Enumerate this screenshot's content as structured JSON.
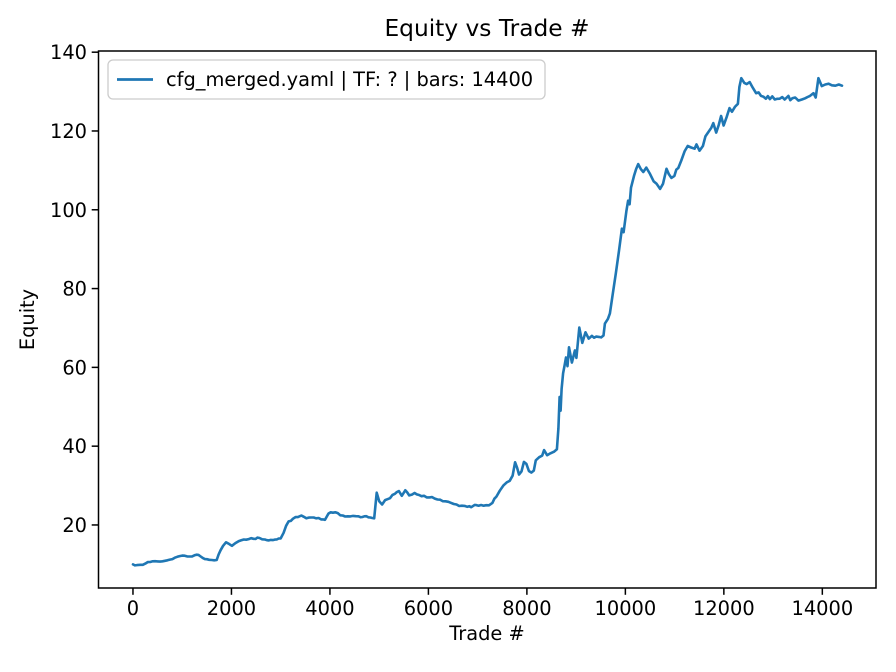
{
  "colors": {
    "line": "#1f77b4",
    "spine": "#000000",
    "legend_border": "#cccccc",
    "background": "#ffffff"
  },
  "chart_data": {
    "type": "line",
    "title": "Equity vs Trade #",
    "xlabel": "Trade #",
    "ylabel": "Equity",
    "grid": false,
    "legend_position": "upper left",
    "xlim": [
      -700,
      15090
    ],
    "ylim": [
      4,
      140.3
    ],
    "x_ticks": [
      0,
      2000,
      4000,
      6000,
      8000,
      10000,
      12000,
      14000
    ],
    "y_ticks": [
      20,
      40,
      60,
      80,
      100,
      120,
      140
    ],
    "series": [
      {
        "name": "cfg_merged.yaml | TF: ? | bars: 14400",
        "color": "#1f77b4",
        "points": [
          [
            0,
            10.0
          ],
          [
            80,
            9.8
          ],
          [
            150,
            9.9
          ],
          [
            250,
            10.2
          ],
          [
            350,
            10.6
          ],
          [
            450,
            10.8
          ],
          [
            550,
            10.7
          ],
          [
            650,
            10.9
          ],
          [
            750,
            11.2
          ],
          [
            850,
            11.7
          ],
          [
            950,
            12.1
          ],
          [
            1050,
            12.2
          ],
          [
            1150,
            12.0
          ],
          [
            1250,
            12.3
          ],
          [
            1330,
            12.4
          ],
          [
            1420,
            11.6
          ],
          [
            1500,
            11.3
          ],
          [
            1600,
            11.1
          ],
          [
            1700,
            11.1
          ],
          [
            1740,
            12.5
          ],
          [
            1780,
            13.6
          ],
          [
            1830,
            14.7
          ],
          [
            1890,
            15.6
          ],
          [
            1950,
            15.2
          ],
          [
            2010,
            14.7
          ],
          [
            2080,
            15.4
          ],
          [
            2150,
            15.9
          ],
          [
            2250,
            16.3
          ],
          [
            2350,
            16.4
          ],
          [
            2450,
            16.5
          ],
          [
            2570,
            16.7
          ],
          [
            2680,
            16.3
          ],
          [
            2800,
            16.2
          ],
          [
            2920,
            16.3
          ],
          [
            3000,
            16.6
          ],
          [
            3060,
            18.0
          ],
          [
            3110,
            19.8
          ],
          [
            3160,
            20.9
          ],
          [
            3250,
            21.6
          ],
          [
            3350,
            22.0
          ],
          [
            3420,
            22.4
          ],
          [
            3520,
            21.7
          ],
          [
            3620,
            21.9
          ],
          [
            3720,
            21.7
          ],
          [
            3820,
            21.4
          ],
          [
            3900,
            21.3
          ],
          [
            3970,
            22.9
          ],
          [
            4060,
            23.1
          ],
          [
            4160,
            23.0
          ],
          [
            4260,
            22.4
          ],
          [
            4360,
            22.2
          ],
          [
            4470,
            22.3
          ],
          [
            4580,
            22.2
          ],
          [
            4700,
            22.2
          ],
          [
            4820,
            21.9
          ],
          [
            4900,
            21.7
          ],
          [
            4950,
            28.2
          ],
          [
            5000,
            26.0
          ],
          [
            5060,
            25.2
          ],
          [
            5120,
            26.3
          ],
          [
            5220,
            26.8
          ],
          [
            5320,
            27.9
          ],
          [
            5400,
            28.6
          ],
          [
            5460,
            27.4
          ],
          [
            5530,
            28.8
          ],
          [
            5610,
            27.5
          ],
          [
            5720,
            28.1
          ],
          [
            5810,
            27.6
          ],
          [
            5910,
            27.4
          ],
          [
            6020,
            27.0
          ],
          [
            6130,
            26.7
          ],
          [
            6240,
            26.4
          ],
          [
            6350,
            26.0
          ],
          [
            6460,
            25.6
          ],
          [
            6570,
            25.2
          ],
          [
            6680,
            24.9
          ],
          [
            6790,
            24.6
          ],
          [
            6870,
            24.5
          ],
          [
            6940,
            25.1
          ],
          [
            7020,
            24.9
          ],
          [
            7120,
            24.9
          ],
          [
            7230,
            25.0
          ],
          [
            7300,
            25.6
          ],
          [
            7380,
            27.2
          ],
          [
            7450,
            28.7
          ],
          [
            7520,
            30.0
          ],
          [
            7590,
            30.8
          ],
          [
            7650,
            31.2
          ],
          [
            7710,
            32.5
          ],
          [
            7760,
            35.9
          ],
          [
            7800,
            34.6
          ],
          [
            7840,
            32.8
          ],
          [
            7890,
            33.6
          ],
          [
            7940,
            36.0
          ],
          [
            7990,
            35.5
          ],
          [
            8040,
            33.7
          ],
          [
            8090,
            33.3
          ],
          [
            8140,
            33.8
          ],
          [
            8180,
            36.4
          ],
          [
            8250,
            37.2
          ],
          [
            8310,
            37.6
          ],
          [
            8350,
            39.0
          ],
          [
            8410,
            37.7
          ],
          [
            8480,
            38.2
          ],
          [
            8550,
            38.6
          ],
          [
            8610,
            39.2
          ],
          [
            8640,
            44.5
          ],
          [
            8665,
            52.5
          ],
          [
            8685,
            49.0
          ],
          [
            8705,
            54.5
          ],
          [
            8735,
            58.5
          ],
          [
            8765,
            60.5
          ],
          [
            8795,
            62.5
          ],
          [
            8825,
            60.3
          ],
          [
            8855,
            65.1
          ],
          [
            8915,
            61.2
          ],
          [
            8975,
            64.3
          ],
          [
            9005,
            62.4
          ],
          [
            9065,
            70.1
          ],
          [
            9125,
            66.2
          ],
          [
            9190,
            68.9
          ],
          [
            9255,
            67.3
          ],
          [
            9320,
            68.0
          ],
          [
            9410,
            67.8
          ],
          [
            9510,
            67.6
          ],
          [
            9555,
            68.1
          ],
          [
            9585,
            71.1
          ],
          [
            9645,
            72.3
          ],
          [
            9685,
            73.7
          ],
          [
            9745,
            78.7
          ],
          [
            9805,
            83.8
          ],
          [
            9870,
            89.6
          ],
          [
            9930,
            95.2
          ],
          [
            9965,
            94.3
          ],
          [
            10020,
            99.7
          ],
          [
            10055,
            102.3
          ],
          [
            10085,
            101.4
          ],
          [
            10115,
            105.6
          ],
          [
            10175,
            108.6
          ],
          [
            10260,
            111.6
          ],
          [
            10315,
            110.3
          ],
          [
            10365,
            109.6
          ],
          [
            10425,
            110.7
          ],
          [
            10500,
            109.1
          ],
          [
            10575,
            107.2
          ],
          [
            10635,
            106.6
          ],
          [
            10705,
            105.3
          ],
          [
            10765,
            106.6
          ],
          [
            10835,
            110.4
          ],
          [
            10885,
            109.0
          ],
          [
            10935,
            108.1
          ],
          [
            10995,
            108.6
          ],
          [
            11075,
            110.6
          ],
          [
            11135,
            112.5
          ],
          [
            11205,
            114.9
          ],
          [
            11265,
            116.2
          ],
          [
            11335,
            115.8
          ],
          [
            11405,
            115.5
          ],
          [
            11445,
            116.6
          ],
          [
            11505,
            115.0
          ],
          [
            11575,
            116.2
          ],
          [
            11675,
            119.5
          ],
          [
            11745,
            120.8
          ],
          [
            11785,
            122.0
          ],
          [
            11845,
            119.6
          ],
          [
            11895,
            121.5
          ],
          [
            11945,
            123.8
          ],
          [
            11995,
            121.4
          ],
          [
            12055,
            123.5
          ],
          [
            12115,
            125.8
          ],
          [
            12165,
            124.9
          ],
          [
            12225,
            126.1
          ],
          [
            12285,
            126.9
          ],
          [
            12315,
            131.2
          ],
          [
            12355,
            133.4
          ],
          [
            12415,
            132.2
          ],
          [
            12465,
            131.9
          ],
          [
            12525,
            132.4
          ],
          [
            12585,
            131.0
          ],
          [
            12655,
            129.6
          ],
          [
            12755,
            128.9
          ],
          [
            12855,
            128.2
          ],
          [
            12935,
            128.1
          ],
          [
            13035,
            128.0
          ],
          [
            13135,
            128.2
          ],
          [
            13235,
            128.0
          ],
          [
            13310,
            128.9
          ],
          [
            13390,
            128.3
          ],
          [
            13450,
            128.5
          ],
          [
            13515,
            127.7
          ],
          [
            13585,
            128.0
          ],
          [
            13650,
            128.3
          ],
          [
            13750,
            128.9
          ],
          [
            13820,
            129.6
          ],
          [
            13865,
            128.5
          ],
          [
            13920,
            133.4
          ],
          [
            13990,
            131.4
          ],
          [
            14060,
            131.8
          ],
          [
            14125,
            132.0
          ],
          [
            14195,
            131.6
          ],
          [
            14265,
            131.5
          ],
          [
            14335,
            131.8
          ],
          [
            14400,
            131.5
          ]
        ]
      }
    ]
  }
}
